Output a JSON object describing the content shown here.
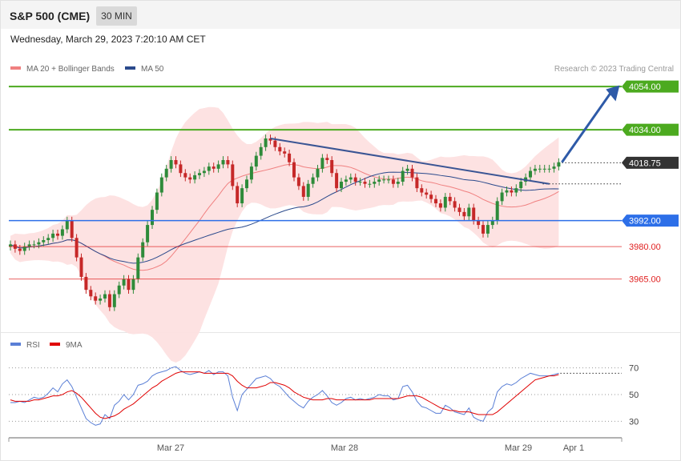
{
  "header": {
    "title": "S&P 500 (CME)",
    "timeframe": "30 MIN"
  },
  "datetime": "Wednesday, March 29, 2023 7:20:10 AM CET",
  "legend": {
    "ma20": {
      "label": "MA 20 + Bollinger Bands",
      "color": "#f08080"
    },
    "ma50": {
      "label": "MA 50",
      "color": "#2b4a8c"
    },
    "credit": "Research © 2023 Trading Central"
  },
  "rsi_legend": {
    "rsi": {
      "label": "RSI",
      "color": "#5a7fd6"
    },
    "ma9": {
      "label": "9MA",
      "color": "#e00000"
    }
  },
  "chart_data": [
    {
      "type": "candlestick",
      "title": "S&P 500 (CME)",
      "ylim": [
        3946,
        4057
      ],
      "x_ticks": [
        "Mar 27",
        "Mar 28",
        "Mar 29",
        "Apr 1"
      ],
      "levels": [
        {
          "value": 4054.0,
          "label": "4054.00",
          "kind": "resistance",
          "color": "#4caa1f"
        },
        {
          "value": 4034.0,
          "label": "4034.00",
          "kind": "resistance",
          "color": "#4caa1f"
        },
        {
          "value": 4018.75,
          "label": "4018.75",
          "kind": "last",
          "color": "#333333"
        },
        {
          "value": 3992.0,
          "label": "3992.00",
          "kind": "pivot",
          "color": "#2d6fe8"
        },
        {
          "value": 3980.0,
          "label": "3980.00",
          "kind": "support",
          "color": "#e02020"
        },
        {
          "value": 3965.0,
          "label": "3965.00",
          "kind": "support",
          "color": "#e02020"
        }
      ],
      "closes": [
        3981,
        3979,
        3978,
        3980,
        3981,
        3981,
        3982,
        3983,
        3984,
        3986,
        3985,
        3988,
        3992,
        3984,
        3975,
        3966,
        3960,
        3957,
        3955,
        3956,
        3958,
        3952,
        3958,
        3962,
        3965,
        3960,
        3965,
        3975,
        3982,
        3990,
        3997,
        4005,
        4012,
        4016,
        4020,
        4018,
        4014,
        4012,
        4011,
        4013,
        4014,
        4015,
        4017,
        4016,
        4018,
        4020,
        4018,
        4008,
        4000,
        4007,
        4011,
        4017,
        4022,
        4026,
        4030,
        4029,
        4026,
        4024,
        4023,
        4019,
        4012,
        4008,
        4003,
        4009,
        4012,
        4016,
        4021,
        4020,
        4014,
        4007,
        4010,
        4011,
        4012,
        4010,
        4010,
        4009,
        4009,
        4010,
        4011,
        4011,
        4011,
        4009,
        4010,
        4015,
        4016,
        4012,
        4007,
        4005,
        4004,
        4002,
        4000,
        3998,
        4003,
        4001,
        3998,
        3996,
        3994,
        3998,
        3992,
        3990,
        3986,
        3990,
        3992,
        4001,
        4005,
        4006,
        4005,
        4007,
        4010,
        4012,
        4015,
        4016,
        4016,
        4016,
        4016,
        4017,
        4019
      ],
      "overlays": {
        "ma20": "light red line",
        "ma50": "dark blue line",
        "bollinger": "light red band"
      },
      "annotations": [
        "descending trendline",
        "projection arrow toward 4054.00"
      ]
    },
    {
      "type": "line",
      "title": "RSI",
      "ylim": [
        20,
        80
      ],
      "y_ticks": [
        30,
        50,
        70
      ],
      "series": [
        {
          "name": "RSI",
          "values": [
            44,
            44,
            45,
            44,
            46,
            48,
            47,
            48,
            51,
            55,
            52,
            58,
            61,
            56,
            48,
            40,
            32,
            29,
            27,
            28,
            35,
            32,
            42,
            45,
            50,
            46,
            50,
            57,
            58,
            60,
            64,
            66,
            67,
            68,
            70,
            71,
            68,
            66,
            65,
            66,
            67,
            66,
            68,
            65,
            67,
            67,
            64,
            48,
            38,
            50,
            54,
            58,
            62,
            63,
            64,
            62,
            58,
            56,
            52,
            48,
            45,
            42,
            40,
            45,
            48,
            50,
            53,
            49,
            44,
            42,
            44,
            47,
            48,
            46,
            47,
            46,
            47,
            48,
            50,
            49,
            49,
            46,
            47,
            56,
            57,
            52,
            45,
            41,
            40,
            38,
            36,
            36,
            42,
            40,
            37,
            36,
            35,
            40,
            33,
            31,
            30,
            37,
            40,
            52,
            56,
            58,
            57,
            59,
            62,
            64,
            66,
            65,
            64,
            64,
            64,
            65,
            66
          ]
        },
        {
          "name": "9MA",
          "values": [
            46,
            45,
            45,
            45,
            45,
            46,
            46,
            47,
            48,
            49,
            49,
            50,
            52,
            53,
            51,
            48,
            44,
            40,
            36,
            33,
            32,
            33,
            34,
            36,
            39,
            41,
            43,
            46,
            49,
            52,
            55,
            57,
            60,
            62,
            64,
            66,
            67,
            67,
            67,
            67,
            67,
            66,
            66,
            66,
            66,
            66,
            66,
            64,
            60,
            57,
            55,
            55,
            55,
            56,
            57,
            59,
            59,
            58,
            57,
            55,
            52,
            50,
            48,
            47,
            46,
            46,
            46,
            47,
            47,
            46,
            46,
            46,
            46,
            46,
            46,
            46,
            46,
            47,
            47,
            47,
            47,
            47,
            47,
            48,
            49,
            49,
            49,
            48,
            46,
            44,
            42,
            40,
            39,
            38,
            38,
            37,
            37,
            37,
            36,
            35,
            35,
            35,
            35,
            37,
            40,
            43,
            46,
            49,
            52,
            55,
            58,
            61,
            62,
            63,
            64,
            64,
            65
          ]
        }
      ],
      "x_ticks": [
        "Mar 27",
        "Mar 28",
        "Mar 29",
        "Apr 1"
      ]
    }
  ]
}
